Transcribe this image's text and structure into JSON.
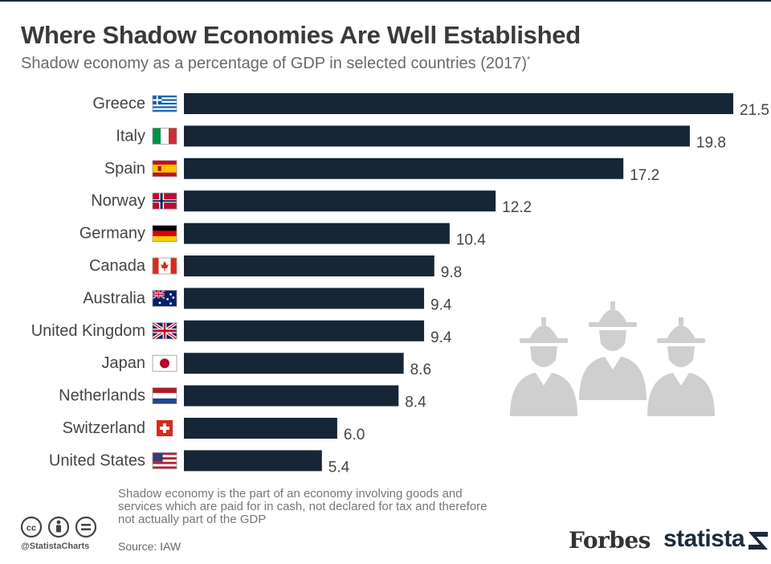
{
  "title": "Where Shadow Economies Are Well Established",
  "subtitle": "Shadow economy as a percentage of GDP in selected countries (2017)",
  "subtitle_mark": "*",
  "footnote": "Shadow economy is the part of an economy involving goods and services which are paid for in cash, not declared for tax and therefore not actually part of the GDP",
  "source": "Source: IAW",
  "handle": "@StatistaCharts",
  "brands": {
    "forbes": "Forbes",
    "statista": "statista"
  },
  "colors": {
    "bar": "#162636",
    "title": "#3a3a3a",
    "illustration": "#cfcfcf"
  },
  "icons": [
    "cc-icon",
    "attribution-icon",
    "no-derivatives-icon",
    "construction-workers-icon",
    "statista-logo-icon"
  ],
  "chart_data": {
    "type": "bar",
    "orientation": "horizontal",
    "title": "Where Shadow Economies Are Well Established",
    "xlabel": "",
    "ylabel": "",
    "xlim": [
      0,
      21.5
    ],
    "grid": false,
    "categories": [
      "Greece",
      "Italy",
      "Spain",
      "Norway",
      "Germany",
      "Canada",
      "Australia",
      "United Kingdom",
      "Japan",
      "Netherlands",
      "Switzerland",
      "United States"
    ],
    "flags": [
      "greece",
      "italy",
      "spain",
      "norway",
      "germany",
      "canada",
      "australia",
      "united-kingdom",
      "japan",
      "netherlands",
      "switzerland",
      "united-states"
    ],
    "values": [
      21.5,
      19.8,
      17.2,
      12.2,
      10.4,
      9.8,
      9.4,
      9.4,
      8.6,
      8.4,
      6.0,
      5.4
    ],
    "labels": [
      "21.5",
      "19.8",
      "17.2",
      "12.2",
      "10.4",
      "9.8",
      "9.4",
      "9.4",
      "8.6",
      "8.4",
      "6.0",
      "5.4"
    ]
  }
}
